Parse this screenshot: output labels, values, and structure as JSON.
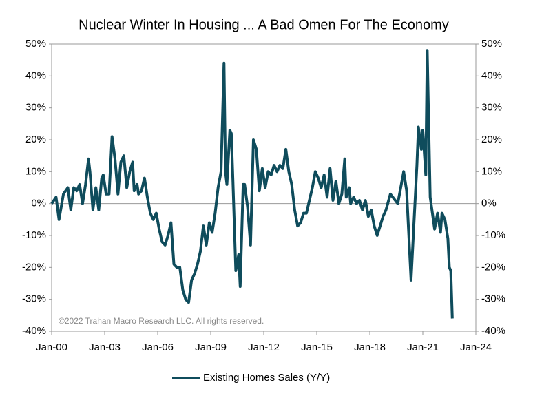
{
  "chart_data": {
    "type": "line",
    "title": "Nuclear Winter In Housing ... A Bad Omen For The Economy",
    "annotation": "©2022 Trahan Macro Research LLC. All rights reserved.",
    "x": [
      "Jan-00",
      "Apr-00",
      "Jun-00",
      "Sep-00",
      "Dec-00",
      "Feb-01",
      "Apr-01",
      "Jun-01",
      "Aug-01",
      "Oct-01",
      "Dec-01",
      "Feb-02",
      "Mar-02",
      "May-02",
      "Jul-02",
      "Sep-02",
      "Nov-02",
      "Dec-02",
      "Feb-03",
      "Apr-03",
      "Jun-03",
      "Aug-03",
      "Oct-03",
      "Dec-03",
      "Feb-04",
      "Apr-04",
      "Jun-04",
      "Aug-04",
      "Sep-04",
      "Nov-04",
      "Dec-04",
      "Feb-05",
      "Apr-05",
      "Jun-05",
      "Aug-05",
      "Oct-05",
      "Dec-05",
      "Feb-06",
      "Apr-06",
      "Jun-06",
      "Aug-06",
      "Oct-06",
      "Dec-06",
      "Feb-07",
      "Apr-07",
      "Jun-07",
      "Aug-07",
      "Oct-07",
      "Dec-07",
      "Feb-08",
      "Apr-08",
      "Jun-08",
      "Aug-08",
      "Oct-08",
      "Dec-08",
      "Feb-09",
      "Apr-09",
      "Jun-09",
      "Aug-09",
      "Oct-09",
      "Nov-09",
      "Dec-09",
      "Feb-10",
      "Mar-10",
      "Apr-10",
      "Jun-10",
      "Aug-10",
      "Sep-10",
      "Nov-10",
      "Dec-10",
      "Feb-11",
      "Apr-11",
      "Jun-11",
      "Aug-11",
      "Oct-11",
      "Dec-11",
      "Feb-12",
      "Apr-12",
      "Jun-12",
      "Aug-12",
      "Oct-12",
      "Dec-12",
      "Feb-13",
      "Apr-13",
      "Jun-13",
      "Aug-13",
      "Oct-13",
      "Dec-13",
      "Feb-14",
      "Apr-14",
      "Jun-14",
      "Aug-14",
      "Oct-14",
      "Dec-14",
      "Feb-15",
      "Apr-15",
      "Jun-15",
      "Aug-15",
      "Oct-15",
      "Dec-15",
      "Feb-16",
      "Apr-16",
      "Jun-16",
      "Aug-16",
      "Sep-16",
      "Nov-16",
      "Dec-16",
      "Feb-17",
      "Apr-17",
      "Jun-17",
      "Aug-17",
      "Oct-17",
      "Dec-17",
      "Feb-18",
      "Apr-18",
      "Jun-18",
      "Aug-18",
      "Oct-18",
      "Dec-18",
      "Mar-19",
      "Aug-19",
      "Dec-19",
      "Feb-20",
      "May-20",
      "Sep-20",
      "Oct-20",
      "Dec-20",
      "Jan-21",
      "Mar-21",
      "Apr-21",
      "Jun-21",
      "Sep-21",
      "Nov-21",
      "Jan-22",
      "Feb-22",
      "Apr-22",
      "Jun-22",
      "Jul-22",
      "Aug-22",
      "Sep-22"
    ],
    "series": [
      {
        "name": "Existing Homes Sales (Y/Y)",
        "color": "#0f4c5c",
        "values": [
          0,
          2,
          -5,
          3,
          5,
          -2,
          5,
          4,
          6,
          0,
          6,
          14,
          10,
          -2,
          5,
          -2,
          8,
          9,
          3,
          3,
          21,
          14,
          3,
          13,
          15,
          5,
          10,
          13,
          4,
          6,
          3,
          4,
          8,
          2,
          -3,
          -5,
          -3,
          -8,
          -12,
          -13,
          -10,
          -6,
          -19,
          -20,
          -20,
          -27,
          -30,
          -31,
          -24,
          -22,
          -19,
          -15,
          -7,
          -13,
          -6,
          -9,
          -3,
          5,
          10,
          44,
          10,
          6,
          23,
          22,
          8,
          -21,
          -16,
          -26,
          6,
          6,
          -1,
          -13,
          20,
          17,
          4,
          11,
          5,
          10,
          9,
          12,
          10,
          12,
          11,
          17,
          10,
          6,
          -2,
          -7,
          -6,
          -3,
          -3,
          1,
          5,
          10,
          8,
          5,
          9,
          2,
          11,
          1,
          7,
          0,
          3,
          14,
          2,
          5,
          0,
          2,
          0,
          1,
          -2,
          1,
          -4,
          -2,
          -7,
          -10,
          -7,
          -4,
          -2,
          3,
          0,
          10,
          4,
          -24,
          12,
          24,
          17,
          23,
          9,
          48,
          2,
          -8,
          -3,
          -9,
          -3,
          -5,
          -11,
          -20,
          -21,
          -36
        ]
      }
    ],
    "xlim": [
      "Jan-00",
      "Jan-24"
    ],
    "xticks": [
      "Jan-00",
      "Jan-03",
      "Jan-06",
      "Jan-09",
      "Jan-12",
      "Jan-15",
      "Jan-18",
      "Jan-21",
      "Jan-24"
    ],
    "ylim": [
      -40,
      50
    ],
    "yticks": [
      {
        "value": 50,
        "label": "50%"
      },
      {
        "value": 40,
        "label": "40%"
      },
      {
        "value": 30,
        "label": "30%"
      },
      {
        "value": 20,
        "label": "20%"
      },
      {
        "value": 10,
        "label": "10%"
      },
      {
        "value": 0,
        "label": "0%"
      },
      {
        "value": -10,
        "label": "-10%"
      },
      {
        "value": -20,
        "label": "-20%"
      },
      {
        "value": -30,
        "label": "-30%"
      },
      {
        "value": -40,
        "label": "-40%"
      }
    ],
    "y2lim": [
      -40,
      50
    ],
    "y2ticks": [
      {
        "value": 50,
        "label": "50%"
      },
      {
        "value": 40,
        "label": "40%"
      },
      {
        "value": 30,
        "label": "30%"
      },
      {
        "value": 20,
        "label": "20%"
      },
      {
        "value": 10,
        "label": "10%"
      },
      {
        "value": 0,
        "label": "0%"
      },
      {
        "value": -10,
        "label": "-10%"
      },
      {
        "value": -20,
        "label": "-20%"
      },
      {
        "value": -30,
        "label": "-30%"
      },
      {
        "value": -40,
        "label": "-40%"
      }
    ],
    "grid": false,
    "legend": "bottom"
  }
}
